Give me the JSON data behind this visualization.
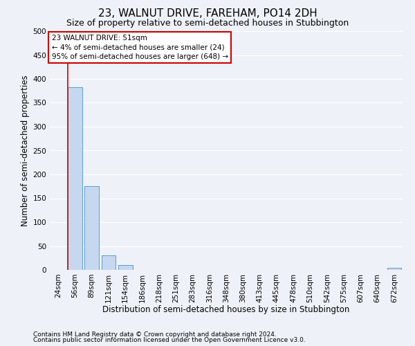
{
  "title": "23, WALNUT DRIVE, FAREHAM, PO14 2DH",
  "subtitle": "Size of property relative to semi-detached houses in Stubbington",
  "xlabel": "Distribution of semi-detached houses by size in Stubbington",
  "ylabel": "Number of semi-detached properties",
  "footnote1": "Contains HM Land Registry data © Crown copyright and database right 2024.",
  "footnote2": "Contains public sector information licensed under the Open Government Licence v3.0.",
  "annotation_title": "23 WALNUT DRIVE: 51sqm",
  "annotation_line2": "← 4% of semi-detached houses are smaller (24)",
  "annotation_line3": "95% of semi-detached houses are larger (648) →",
  "bins": [
    "24sqm",
    "56sqm",
    "89sqm",
    "121sqm",
    "154sqm",
    "186sqm",
    "218sqm",
    "251sqm",
    "283sqm",
    "316sqm",
    "348sqm",
    "380sqm",
    "413sqm",
    "445sqm",
    "478sqm",
    "510sqm",
    "542sqm",
    "575sqm",
    "607sqm",
    "640sqm",
    "672sqm"
  ],
  "values": [
    0,
    383,
    175,
    30,
    10,
    0,
    0,
    0,
    0,
    0,
    0,
    0,
    0,
    0,
    0,
    0,
    0,
    0,
    0,
    0,
    5
  ],
  "bar_color": "#c5d8f0",
  "bar_edge_color": "#5b9bd5",
  "marker_line_color": "#cc0000",
  "ylim": [
    0,
    500
  ],
  "yticks": [
    0,
    50,
    100,
    150,
    200,
    250,
    300,
    350,
    400,
    450,
    500
  ],
  "annotation_box_color": "#ffffff",
  "annotation_box_edge": "#cc0000",
  "bg_color": "#eef2f8",
  "grid_color": "#ffffff",
  "title_fontsize": 11,
  "subtitle_fontsize": 9,
  "axis_label_fontsize": 8.5,
  "tick_fontsize": 7.5,
  "annotation_fontsize": 7.5,
  "footnote_fontsize": 6.5
}
